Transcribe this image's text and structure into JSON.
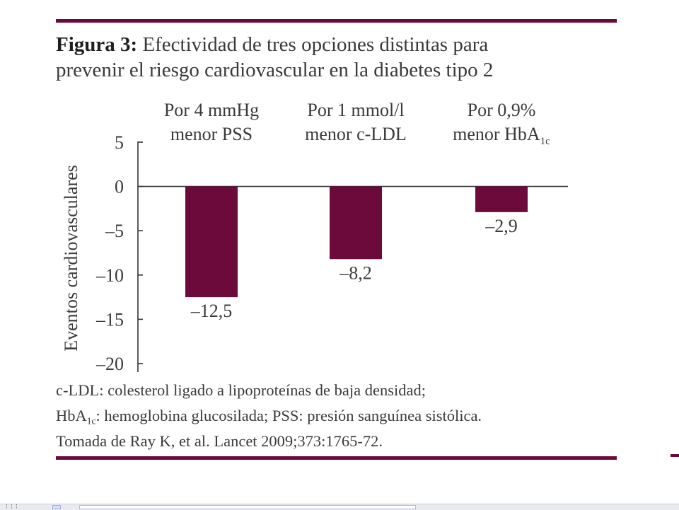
{
  "colors": {
    "accent": "#6d0a3c",
    "text": "#3a3a3a"
  },
  "figure": {
    "label": "Figura 3:",
    "title_line1": "Efectividad de tres opciones distintas para",
    "title_line2": "prevenir el riesgo cardiovascular en la diabetes tipo 2"
  },
  "chart_data": {
    "type": "bar",
    "categories": [
      {
        "line1": "Por 4 mmHg",
        "line2": "menor PSS",
        "sub": ""
      },
      {
        "line1": "Por 1 mmol/l",
        "line2": "menor c-LDL",
        "sub": ""
      },
      {
        "line1": "Por 0,9%",
        "line2": "menor HbA",
        "sub": "1c"
      }
    ],
    "values": [
      -12.5,
      -8.2,
      -2.9
    ],
    "value_labels": [
      "–12,5",
      "–8,2",
      "–2,9"
    ],
    "ylabel": "Eventos cardiovasculares",
    "ylim": [
      -20,
      5
    ],
    "yticks": [
      5,
      0,
      -5,
      -10,
      -15,
      -20
    ],
    "ytick_labels": [
      "5",
      "0",
      "–5",
      "–10",
      "–15",
      "–20"
    ],
    "grid": false,
    "bar_color": "#6d0a3c"
  },
  "footnote": {
    "line1": "c-LDL: colesterol ligado a lipoproteínas de baja densidad;",
    "line2_prefix": "HbA",
    "line2_sub": "1c",
    "line2_rest": ": hemoglobina glucosilada; PSS: presión sanguínea sistólica.",
    "line3": "Tomada de Ray K, et al. Lancet 2009;373:1765-72."
  }
}
